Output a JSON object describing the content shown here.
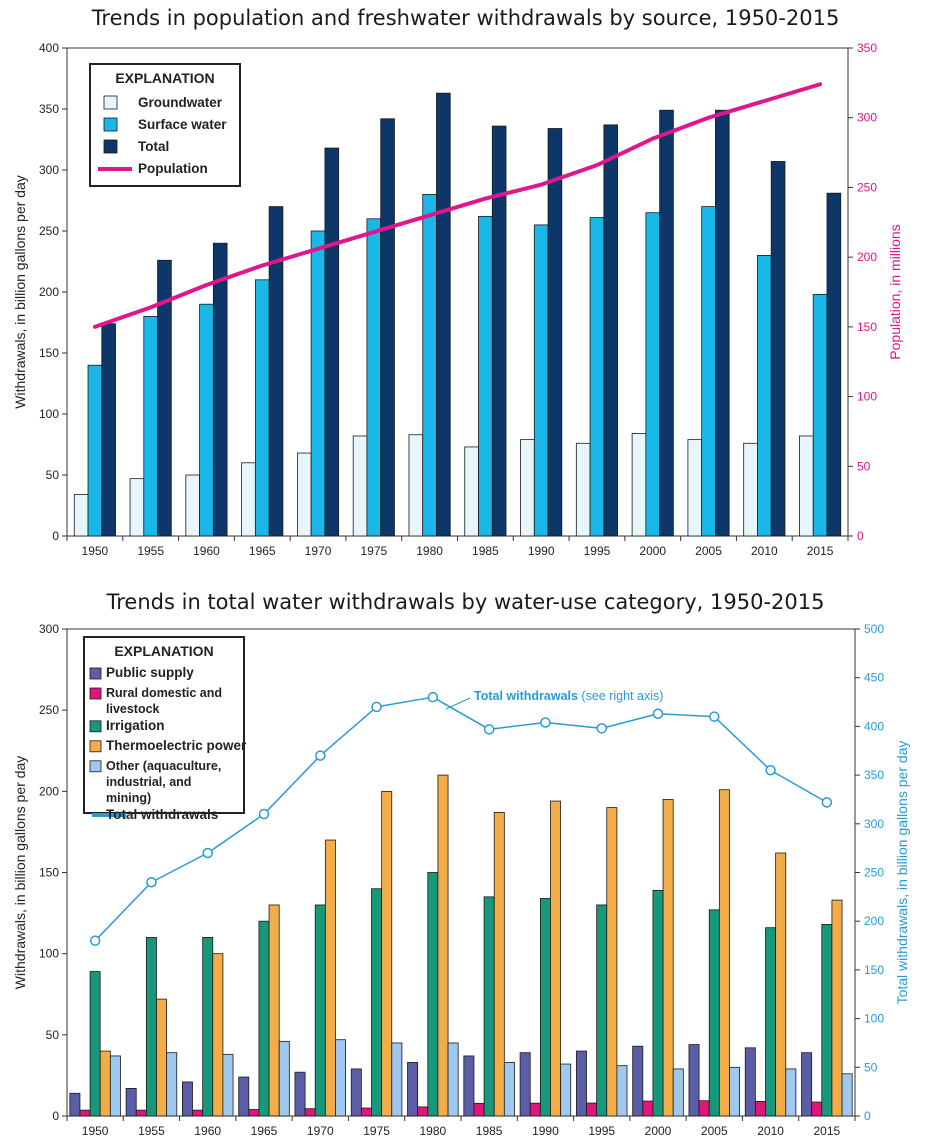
{
  "chart_data": [
    {
      "type": "bar",
      "title": "Trends in population and freshwater withdrawals by source, 1950-2015",
      "xlabel": "",
      "ylabel": "Withdrawals, in billion gallons per day",
      "y2label": "Population, in millions",
      "ylim": [
        0,
        400
      ],
      "y2lim": [
        0,
        350
      ],
      "yticks": [
        "0",
        "50",
        "100",
        "150",
        "200",
        "250",
        "300",
        "350",
        "400"
      ],
      "y2ticks": [
        "0",
        "50",
        "100",
        "150",
        "200",
        "250",
        "300",
        "350"
      ],
      "categories": [
        "1950",
        "1955",
        "1960",
        "1965",
        "1970",
        "1975",
        "1980",
        "1985",
        "1990",
        "1995",
        "2000",
        "2005",
        "2010",
        "2015"
      ],
      "legend_title": "EXPLANATION",
      "legend_position": "top-left",
      "series": [
        {
          "name": "Groundwater",
          "kind": "bar",
          "color": "#e6f6fb",
          "values": [
            34,
            47,
            50,
            60,
            68,
            82,
            83,
            73,
            79,
            76,
            84,
            79,
            76,
            82
          ]
        },
        {
          "name": "Surface water",
          "kind": "bar",
          "color": "#1ab8e8",
          "values": [
            140,
            180,
            190,
            210,
            250,
            260,
            280,
            262,
            255,
            261,
            265,
            270,
            230,
            198
          ]
        },
        {
          "name": "Total",
          "kind": "bar",
          "color": "#0c3768",
          "values": [
            174,
            226,
            240,
            270,
            318,
            342,
            363,
            336,
            334,
            337,
            349,
            349,
            307,
            281
          ]
        },
        {
          "name": "Population",
          "kind": "line",
          "axis": "right",
          "color": "#e0168c",
          "values": [
            150,
            164,
            180,
            194,
            206,
            218,
            230,
            242,
            252,
            266,
            285,
            300,
            312,
            324
          ]
        }
      ]
    },
    {
      "type": "bar",
      "title": "Trends in total water withdrawals by water-use category, 1950-2015",
      "xlabel": "",
      "ylabel": "Withdrawals, in billion gallons per day",
      "y2label": "Total withdrawals, in billion gallons per day",
      "ylim": [
        0,
        300
      ],
      "y2lim": [
        0,
        500
      ],
      "yticks": [
        "0",
        "50",
        "100",
        "150",
        "200",
        "250",
        "300"
      ],
      "y2ticks": [
        "0",
        "50",
        "100",
        "150",
        "200",
        "250",
        "300",
        "350",
        "400",
        "450",
        "500"
      ],
      "categories": [
        "1950",
        "1955",
        "1960",
        "1965",
        "1970",
        "1975",
        "1980",
        "1985",
        "1990",
        "1995",
        "2000",
        "2005",
        "2010",
        "2015"
      ],
      "legend_title": "EXPLANATION",
      "legend_position": "top-left",
      "series": [
        {
          "name": "Public supply",
          "kind": "bar",
          "color": "#5b5ea6",
          "values": [
            14,
            17,
            21,
            24,
            27,
            29,
            33,
            37,
            39,
            40,
            43,
            44,
            42,
            39
          ]
        },
        {
          "name": "Rural domestic and livestock",
          "kind": "bar",
          "color": "#e0167c",
          "values": [
            3.6,
            3.6,
            3.6,
            4.0,
            4.5,
            4.9,
            5.6,
            7.8,
            7.9,
            8.0,
            9.2,
            9.4,
            9.0,
            8.6
          ]
        },
        {
          "name": "Irrigation",
          "kind": "bar",
          "color": "#17987a",
          "values": [
            89,
            110,
            110,
            120,
            130,
            140,
            150,
            135,
            134,
            130,
            139,
            127,
            116,
            118
          ]
        },
        {
          "name": "Thermoelectric power",
          "kind": "bar",
          "color": "#f2ad48",
          "values": [
            40,
            72,
            100,
            130,
            170,
            200,
            210,
            187,
            194,
            190,
            195,
            201,
            162,
            133
          ]
        },
        {
          "name": "Other (aquaculture, industrial, and mining)",
          "kind": "bar",
          "color": "#9fc8ee",
          "values": [
            37,
            39,
            38,
            46,
            47,
            45,
            45,
            33,
            32,
            31,
            29,
            30,
            29,
            26
          ]
        },
        {
          "name": "Total withdrawals",
          "kind": "line",
          "axis": "right",
          "color": "#2a9ad6",
          "values": [
            180,
            240,
            270,
            310,
            370,
            420,
            430,
            397,
            404,
            398,
            413,
            410,
            355,
            322
          ]
        }
      ],
      "annotations": [
        {
          "text": "Total withdrawals",
          "subtext": " (see right axis)"
        }
      ]
    }
  ]
}
